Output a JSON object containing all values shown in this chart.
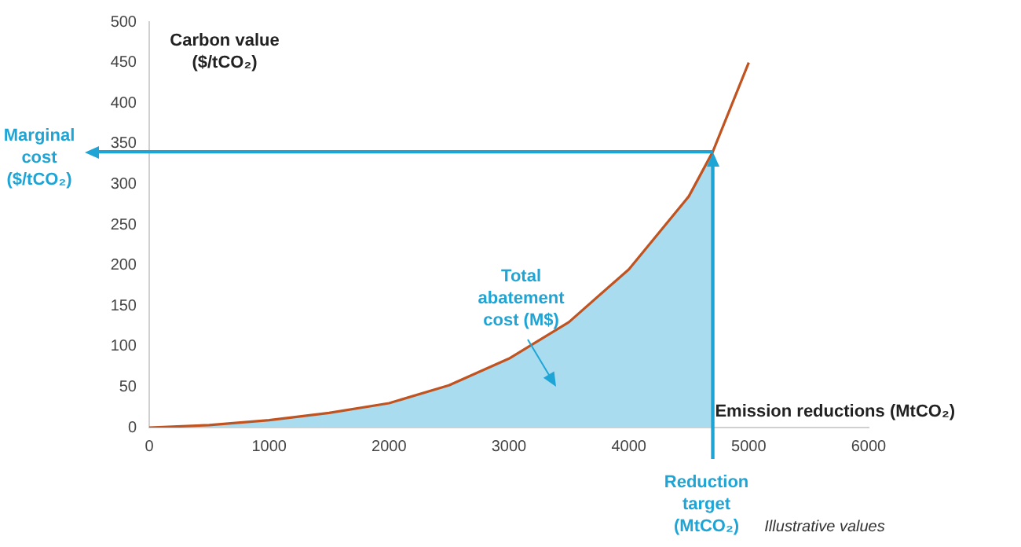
{
  "chart_data": {
    "type": "line",
    "xlabel": "Emission reductions (MtCO₂)",
    "ylabel": "Carbon value ($/tCO₂)",
    "xlim": [
      0,
      6000
    ],
    "xticks": [
      0,
      1000,
      2000,
      3000,
      4000,
      5000,
      6000
    ],
    "ylim": [
      0,
      500
    ],
    "yticks": [
      0,
      50,
      100,
      150,
      200,
      250,
      300,
      350,
      400,
      450,
      500
    ],
    "series": [
      {
        "type": "area",
        "color": "#a9dcef",
        "x": [
          0,
          500,
          1000,
          1500,
          2000,
          2500,
          3000,
          3500,
          4000,
          4500,
          4700
        ],
        "values": [
          0,
          3,
          9,
          18,
          30,
          52,
          85,
          130,
          195,
          285,
          340
        ]
      },
      {
        "type": "line",
        "color": "#c0531f",
        "x": [
          0,
          500,
          1000,
          1500,
          2000,
          2500,
          3000,
          3500,
          4000,
          4500,
          4700,
          5000
        ],
        "values": [
          0,
          3,
          9,
          18,
          30,
          52,
          85,
          130,
          195,
          285,
          340,
          450
        ]
      }
    ],
    "ref_lines": [
      {
        "axis": "y",
        "value": 340,
        "label": "Marginal cost ($/tCO₂)",
        "color": "#1ea5d6"
      },
      {
        "axis": "x",
        "value": 4700,
        "label": "Reduction target (MtCO₂)",
        "color": "#1ea5d6"
      }
    ],
    "annotations": [
      "Total abatement cost (M$)",
      "Illustrative values"
    ],
    "legend": false
  }
}
